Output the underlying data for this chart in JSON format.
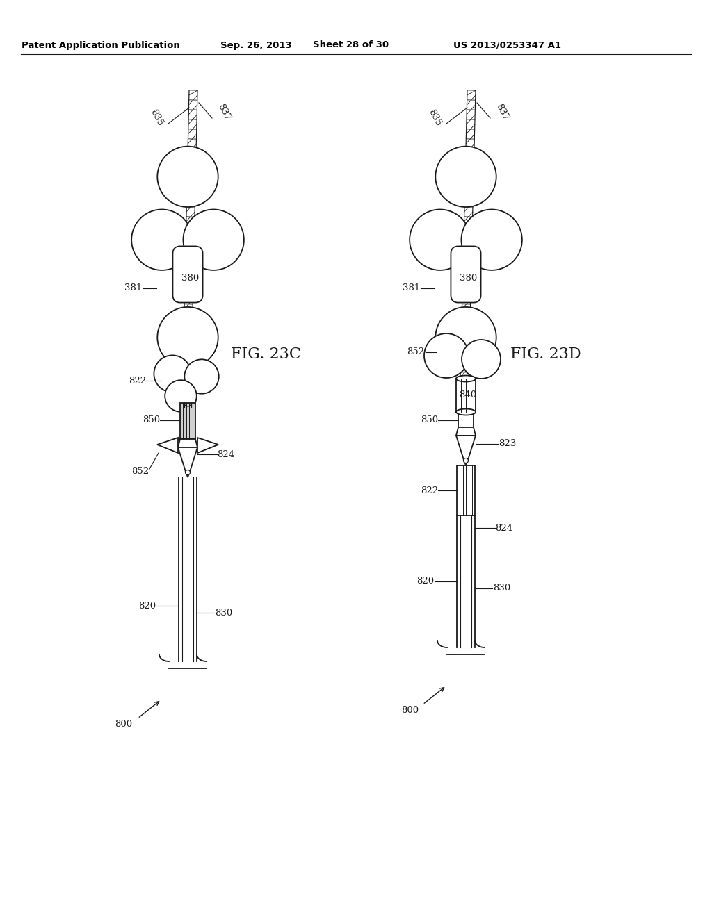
{
  "background_color": "#ffffff",
  "header_text": "Patent Application Publication",
  "header_date": "Sep. 26, 2013",
  "header_sheet": "Sheet 28 of 30",
  "header_patent": "US 2013/0253347 A1",
  "fig_c_label": "FIG. 23C",
  "fig_d_label": "FIG. 23D",
  "line_color": "#1a1a1a",
  "line_width": 1.3
}
